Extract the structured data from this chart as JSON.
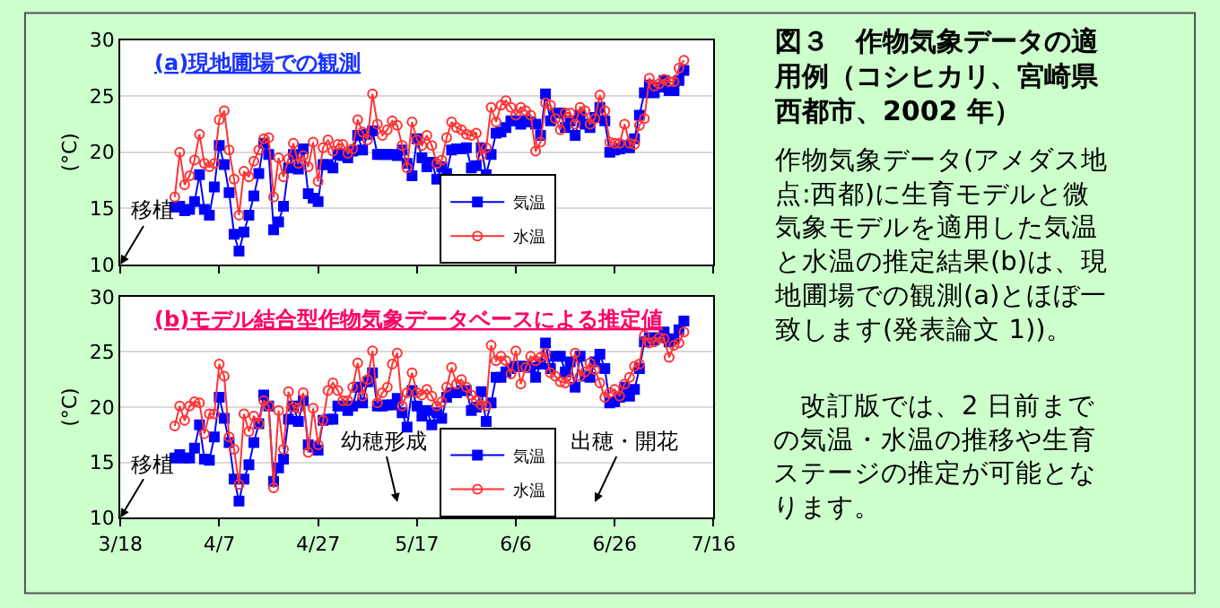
{
  "chart_data": [
    {
      "type": "line",
      "title": "(a)現地圃場での観測",
      "ylabel": "(°C)",
      "x": [
        "--03-29",
        "--03-30",
        "--03-31",
        "--04-01",
        "--04-02",
        "--04-03",
        "--04-04",
        "--04-05",
        "--04-06",
        "--04-07",
        "--04-08",
        "--04-09",
        "--04-10",
        "--04-11",
        "--04-12",
        "--04-13",
        "--04-14",
        "--04-15",
        "--04-16",
        "--04-17",
        "--04-18",
        "--04-19",
        "--04-20",
        "--04-21",
        "--04-22",
        "--04-23",
        "--04-24",
        "--04-25",
        "--04-26",
        "--04-27",
        "--04-28",
        "--04-29",
        "--04-30",
        "--05-01",
        "--05-02",
        "--05-03",
        "--05-04",
        "--05-05",
        "--05-06",
        "--05-07",
        "--05-08",
        "--05-09",
        "--05-10",
        "--05-11",
        "--05-12",
        "--05-13",
        "--05-14",
        "--05-15",
        "--05-16",
        "--05-17",
        "--05-18",
        "--05-19",
        "--05-20",
        "--05-21",
        "--05-22",
        "--05-23",
        "--05-24",
        "--05-25",
        "--05-26",
        "--05-27",
        "--05-28",
        "--05-29",
        "--05-30",
        "--05-31",
        "--06-01",
        "--06-02",
        "--06-03",
        "--06-04",
        "--06-05",
        "--06-06",
        "--06-07",
        "--06-08",
        "--06-09",
        "--06-10",
        "--06-11",
        "--06-12",
        "--06-13",
        "--06-14",
        "--06-15",
        "--06-16",
        "--06-17",
        "--06-18",
        "--06-19",
        "--06-20",
        "--06-21",
        "--06-22",
        "--06-23",
        "--06-24",
        "--06-25",
        "--06-26",
        "--06-27",
        "--06-28",
        "--06-29",
        "--06-30",
        "--07-01",
        "--07-02",
        "--07-03",
        "--07-04",
        "--07-05",
        "--07-06",
        "--07-07",
        "--07-08",
        "--07-09",
        "--07-10"
      ],
      "series": [
        {
          "name": "気温",
          "color": "#0000ff",
          "marker": "square",
          "values": [
            15.1,
            15.2,
            14.8,
            14.9,
            15.6,
            18.0,
            14.9,
            14.4,
            16.9,
            20.6,
            18.9,
            16.4,
            12.7,
            11.2,
            12.9,
            14.4,
            16.1,
            18.1,
            20.8,
            19.8,
            13.1,
            13.8,
            15.2,
            18.6,
            19.8,
            18.5,
            20.3,
            16.3,
            15.9,
            15.6,
            18.9,
            18.9,
            18.6,
            19.8,
            19.7,
            19.5,
            20.1,
            21.5,
            20.2,
            21.6,
            21.9,
            19.8,
            19.8,
            19.8,
            19.8,
            19.7,
            20.2,
            19.0,
            17.9,
            21.2,
            19.5,
            18.7,
            19.1,
            17.6,
            18.7,
            18.1,
            20.2,
            20.3,
            20.3,
            20.4,
            18.6,
            18.8,
            20.4,
            18.0,
            19.8,
            21.7,
            21.8,
            22.2,
            22.8,
            22.8,
            22.5,
            22.8,
            22.7,
            22.5,
            21.5,
            25.2,
            22.8,
            23.5,
            23.5,
            22.2,
            22.8,
            21.5,
            23.3,
            22.5,
            22.2,
            23.1,
            24.0,
            22.8,
            20.0,
            20.2,
            20.3,
            20.6,
            20.4,
            21.2,
            23.3,
            25.3,
            26.0,
            25.3,
            25.8,
            26.4,
            25.5,
            25.5,
            26.4,
            27.3
          ]
        },
        {
          "name": "水温",
          "color": "#ff3333",
          "marker": "circle",
          "values": [
            16.0,
            20.0,
            17.1,
            17.9,
            19.3,
            21.6,
            19.0,
            18.7,
            19.0,
            22.9,
            23.7,
            20.2,
            17.6,
            14.4,
            18.3,
            17.8,
            19.2,
            20.2,
            21.2,
            21.3,
            16.0,
            19.5,
            17.8,
            19.4,
            20.8,
            19.0,
            19.7,
            18.7,
            20.9,
            17.4,
            20.4,
            21.1,
            20.1,
            20.7,
            20.7,
            19.9,
            20.3,
            22.9,
            21.8,
            21.1,
            25.2,
            22.5,
            21.5,
            22.0,
            22.8,
            22.4,
            20.6,
            18.6,
            22.7,
            21.1,
            20.6,
            21.5,
            20.6,
            19.0,
            19.3,
            21.3,
            22.7,
            22.2,
            22.0,
            21.6,
            21.5,
            21.7,
            19.7,
            20.4,
            24.0,
            22.7,
            24.2,
            24.6,
            24.0,
            23.3,
            24.0,
            23.7,
            23.3,
            20.1,
            20.9,
            24.4,
            24.2,
            23.0,
            22.0,
            23.5,
            23.5,
            22.5,
            24.0,
            23.7,
            22.5,
            23.0,
            25.1,
            23.7,
            20.9,
            20.8,
            20.8,
            22.5,
            20.8,
            20.7,
            22.4,
            23.0,
            26.6,
            25.9,
            26.1,
            26.5,
            26.3,
            26.3,
            27.5,
            28.2
          ]
        }
      ],
      "xlim": [
        "--03-18",
        "--07-16"
      ],
      "xticks": [
        {
          "value": "--03-18",
          "label": "3/18"
        },
        {
          "value": "--04-07",
          "label": "4/7"
        },
        {
          "value": "--04-27",
          "label": "4/27"
        },
        {
          "value": "--05-17",
          "label": "5/17"
        },
        {
          "value": "--06-06",
          "label": "6/6"
        },
        {
          "value": "--06-26",
          "label": "6/26"
        },
        {
          "value": "--07-16",
          "label": "7/16"
        }
      ],
      "ylim": [
        10,
        30
      ],
      "yticks": [
        10,
        15,
        20,
        25,
        30
      ],
      "grid": "y",
      "legend": "bottom right",
      "tick_labels": "y",
      "annotations": [
        "移植"
      ]
    },
    {
      "type": "line",
      "title": "(b)モデル結合型作物気象データベースによる推定値",
      "ylabel": "(°C)",
      "x": [
        "--03-29",
        "--03-30",
        "--03-31",
        "--04-01",
        "--04-02",
        "--04-03",
        "--04-04",
        "--04-05",
        "--04-06",
        "--04-07",
        "--04-08",
        "--04-09",
        "--04-10",
        "--04-11",
        "--04-12",
        "--04-13",
        "--04-14",
        "--04-15",
        "--04-16",
        "--04-17",
        "--04-18",
        "--04-19",
        "--04-20",
        "--04-21",
        "--04-22",
        "--04-23",
        "--04-24",
        "--04-25",
        "--04-26",
        "--04-27",
        "--04-28",
        "--04-29",
        "--04-30",
        "--05-01",
        "--05-02",
        "--05-03",
        "--05-04",
        "--05-05",
        "--05-06",
        "--05-07",
        "--05-08",
        "--05-09",
        "--05-10",
        "--05-11",
        "--05-12",
        "--05-13",
        "--05-14",
        "--05-15",
        "--05-16",
        "--05-17",
        "--05-18",
        "--05-19",
        "--05-20",
        "--05-21",
        "--05-22",
        "--05-23",
        "--05-24",
        "--05-25",
        "--05-26",
        "--05-27",
        "--05-28",
        "--05-29",
        "--05-30",
        "--05-31",
        "--06-01",
        "--06-02",
        "--06-03",
        "--06-04",
        "--06-05",
        "--06-06",
        "--06-07",
        "--06-08",
        "--06-09",
        "--06-10",
        "--06-11",
        "--06-12",
        "--06-13",
        "--06-14",
        "--06-15",
        "--06-16",
        "--06-17",
        "--06-18",
        "--06-19",
        "--06-20",
        "--06-21",
        "--06-22",
        "--06-23",
        "--06-24",
        "--06-25",
        "--06-26",
        "--06-27",
        "--06-28",
        "--06-29",
        "--06-30",
        "--07-01",
        "--07-02",
        "--07-03",
        "--07-04",
        "--07-05",
        "--07-06",
        "--07-07",
        "--07-08",
        "--07-09",
        "--07-10"
      ],
      "series": [
        {
          "name": "気温",
          "color": "#0000ff",
          "marker": "square",
          "values": [
            15.4,
            15.7,
            15.4,
            15.4,
            16.3,
            18.4,
            15.3,
            15.2,
            17.3,
            20.9,
            19.0,
            16.8,
            13.5,
            11.5,
            13.5,
            14.8,
            16.8,
            18.5,
            21.1,
            20.1,
            13.3,
            14.5,
            15.3,
            18.9,
            20.1,
            18.7,
            20.6,
            16.6,
            16.4,
            16.1,
            18.8,
            18.9,
            18.9,
            20.1,
            20.1,
            19.7,
            20.1,
            21.8,
            20.4,
            22.3,
            23.1,
            20.1,
            20.1,
            20.2,
            20.2,
            20.8,
            19.5,
            18.2,
            21.5,
            20.1,
            19.2,
            19.7,
            18.4,
            19.5,
            19.0,
            20.9,
            21.3,
            21.3,
            21.5,
            21.5,
            19.7,
            20.0,
            21.4,
            18.7,
            20.4,
            22.7,
            22.7,
            23.2,
            23.5,
            23.7,
            23.7,
            23.7,
            23.6,
            22.7,
            23.9,
            25.8,
            23.5,
            24.6,
            24.6,
            23.2,
            24.1,
            21.8,
            24.6,
            22.8,
            22.7,
            24.1,
            24.8,
            23.5,
            20.4,
            20.5,
            20.9,
            21.8,
            21.0,
            21.6,
            23.5,
            25.9,
            26.3,
            26.1,
            26.3,
            26.8,
            25.9,
            26.2,
            27.0,
            27.8
          ]
        },
        {
          "name": "水温",
          "color": "#ff3333",
          "marker": "circle",
          "values": [
            18.3,
            20.1,
            18.8,
            20.1,
            20.5,
            20.4,
            17.6,
            19.4,
            19.4,
            23.9,
            22.8,
            17.3,
            16.2,
            13.0,
            19.4,
            17.8,
            19.2,
            18.5,
            20.6,
            20.1,
            12.7,
            19.7,
            16.2,
            21.4,
            20.0,
            19.9,
            21.3,
            15.9,
            19.9,
            16.6,
            18.8,
            21.5,
            22.2,
            21.5,
            20.6,
            20.6,
            21.8,
            24.0,
            21.0,
            22.5,
            25.1,
            20.4,
            21.3,
            21.8,
            23.9,
            24.9,
            20.1,
            21.3,
            23.1,
            21.3,
            21.1,
            21.6,
            21.0,
            20.1,
            20.5,
            21.8,
            23.6,
            22.1,
            22.5,
            21.8,
            21.1,
            20.6,
            20.2,
            20.1,
            25.6,
            24.2,
            24.6,
            24.2,
            23.0,
            25.1,
            22.1,
            23.6,
            24.6,
            24.2,
            24.5,
            24.9,
            23.1,
            22.8,
            22.3,
            22.2,
            22.5,
            24.9,
            22.8,
            23.2,
            24.0,
            23.4,
            22.2,
            20.9,
            21.3,
            21.6,
            21.0,
            22.1,
            22.7,
            23.7,
            23.9,
            26.5,
            25.8,
            25.9,
            26.3,
            26.2,
            24.5,
            25.6,
            25.8,
            26.8
          ]
        }
      ],
      "xlim": [
        "--03-18",
        "--07-16"
      ],
      "xticks": [
        {
          "value": "--03-18",
          "label": "3/18"
        },
        {
          "value": "--04-07",
          "label": "4/7"
        },
        {
          "value": "--04-27",
          "label": "4/27"
        },
        {
          "value": "--05-17",
          "label": "5/17"
        },
        {
          "value": "--06-06",
          "label": "6/6"
        },
        {
          "value": "--06-26",
          "label": "6/26"
        },
        {
          "value": "--07-16",
          "label": "7/16"
        }
      ],
      "ylim": [
        10,
        30
      ],
      "yticks": [
        10,
        15,
        20,
        25,
        30
      ],
      "grid": "y",
      "legend": "bottom right",
      "annotations": [
        "移植",
        "幼穂形成",
        "出穂・開花"
      ]
    },
    {
      "type": "other",
      "title": "図３　作物気象データの適用例（コシヒカリ、宮崎県西都市、2002 年）",
      "annotations": [
        "作物気象データ(アメダス地点:西都)に生育モデルと微気象モデルを適用した気温と水温の推定結果(b)は、現地圃場での観測(a)とほぼ一致します(発表論文 1))。",
        "　改訂版では、2 日前までの気温・水温の推移や生育ステージの推定が可能となります。"
      ]
    }
  ]
}
